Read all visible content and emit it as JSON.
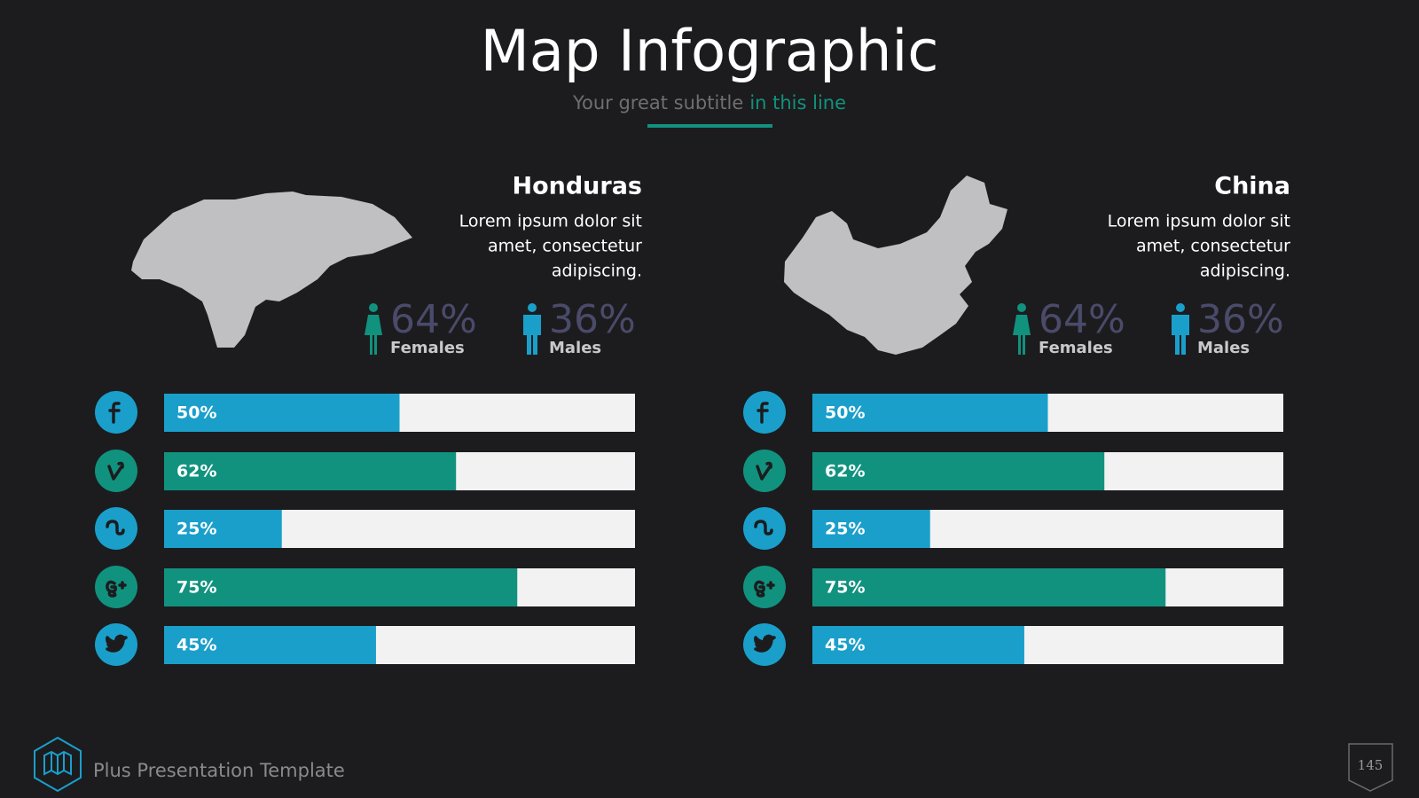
{
  "header": {
    "title": "Map Infographic",
    "subtitle": "Your great subtitle",
    "subtitle_highlight": "in this line"
  },
  "panels": [
    {
      "country": "Honduras",
      "description": [
        "Lorem ipsum dolor sit",
        "amet, consectetur",
        "adipiscing."
      ],
      "stats": [
        {
          "label": "64%",
          "caption": "Females"
        },
        {
          "label": "36%",
          "caption": "Males"
        }
      ],
      "bars": [
        {
          "value": 50,
          "label": "50%",
          "color": "#1a9fcb"
        },
        {
          "value": 62,
          "label": "62%",
          "color": "#11927e"
        },
        {
          "value": 25,
          "label": "25%",
          "color": "#1a9fcb"
        },
        {
          "value": 75,
          "label": "75%",
          "color": "#11927e"
        },
        {
          "value": 45,
          "label": "45%",
          "color": "#1a9fcb"
        }
      ]
    },
    {
      "country": "China",
      "description": [
        "Lorem ipsum dolor sit",
        "amet, consectetur",
        "adipiscing."
      ],
      "stats": [
        {
          "label": "64%",
          "caption": "Females"
        },
        {
          "label": "36%",
          "caption": "Males"
        }
      ],
      "bars": [
        {
          "value": 50,
          "label": "50%",
          "color": "#1a9fcb"
        },
        {
          "value": 62,
          "label": "62%",
          "color": "#11927e"
        },
        {
          "value": 25,
          "label": "25%",
          "color": "#1a9fcb"
        },
        {
          "value": 75,
          "label": "75%",
          "color": "#11927e"
        },
        {
          "value": 45,
          "label": "45%",
          "color": "#1a9fcb"
        }
      ]
    }
  ],
  "footer": {
    "text": "Plus Presentation Template",
    "page": "145"
  }
}
